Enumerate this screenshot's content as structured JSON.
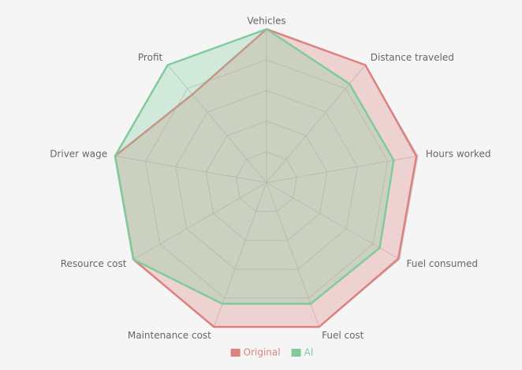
{
  "chart_data": {
    "type": "radar",
    "categories": [
      "Vehicles",
      "Distance traveled",
      "Hours worked",
      "Fuel consumed",
      "Fuel cost",
      "Maintenance cost",
      "Resource cost",
      "Driver wage",
      "Profit"
    ],
    "series": [
      {
        "name": "Original",
        "color": "#dd8080",
        "values": [
          100,
          100,
          99,
          99,
          100,
          100,
          100,
          100,
          75
        ]
      },
      {
        "name": "AI",
        "color": "#7fcc9a",
        "values": [
          100,
          84,
          84,
          85,
          84,
          84,
          100,
          100,
          100
        ]
      }
    ],
    "ylim": [
      0,
      100
    ],
    "yticks": [
      20,
      40,
      60,
      80,
      100
    ],
    "grid": true,
    "legend": "bottom"
  }
}
